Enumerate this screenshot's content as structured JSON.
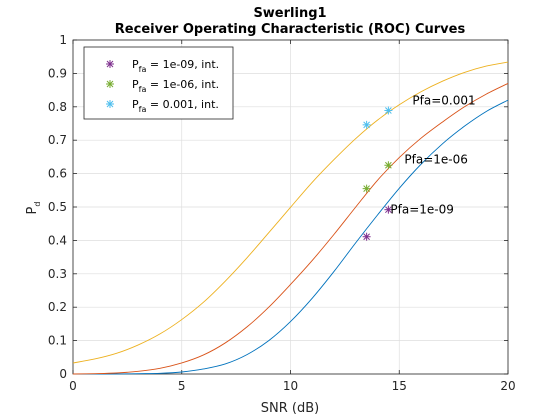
{
  "chart_data": {
    "type": "line",
    "title_line1": "Swerling1",
    "title_line2": "Receiver Operating Characteristic (ROC) Curves",
    "xlabel": "SNR (dB)",
    "ylabel_main": "P",
    "ylabel_sub": "d",
    "xlim": [
      0,
      20
    ],
    "ylim": [
      0,
      1
    ],
    "xticks": [
      "0",
      "5",
      "10",
      "15",
      "20"
    ],
    "yticks": [
      "0",
      "0.1",
      "0.2",
      "0.3",
      "0.4",
      "0.5",
      "0.6",
      "0.7",
      "0.8",
      "0.9",
      "1"
    ],
    "grid": true,
    "legend_position": "top-left",
    "series": [
      {
        "name_main": "P",
        "name_sub": "fa",
        "name_rest": " = 1e-09, int.",
        "label": "Pfa=1e-09",
        "color": "#0072BD",
        "marker_color": "#7E2F8E",
        "x": [
          0,
          1,
          2,
          3,
          4,
          5,
          6,
          7,
          8,
          9,
          10,
          11,
          12,
          13,
          14,
          15,
          16,
          17,
          18,
          19,
          20
        ],
        "y": [
          0.0,
          0.0,
          0.0,
          0.001,
          0.002,
          0.006,
          0.015,
          0.03,
          0.058,
          0.1,
          0.157,
          0.227,
          0.307,
          0.393,
          0.476,
          0.556,
          0.628,
          0.69,
          0.742,
          0.786,
          0.82
        ],
        "markers": [
          {
            "x": 13.5,
            "y": 0.411
          },
          {
            "x": 14.5,
            "y": 0.492
          }
        ]
      },
      {
        "name_main": "P",
        "name_sub": "fa",
        "name_rest": " = 1e-06, int.",
        "label": "Pfa=1e-06",
        "color": "#D95319",
        "marker_color": "#77AC30",
        "x": [
          0,
          1,
          2,
          3,
          4,
          5,
          6,
          7,
          8,
          9,
          10,
          11,
          12,
          13,
          14,
          15,
          16,
          17,
          18,
          19,
          20
        ],
        "y": [
          0.0,
          0.001,
          0.003,
          0.008,
          0.017,
          0.033,
          0.057,
          0.093,
          0.141,
          0.2,
          0.268,
          0.34,
          0.418,
          0.5,
          0.58,
          0.648,
          0.706,
          0.755,
          0.8,
          0.838,
          0.87
        ],
        "markers": [
          {
            "x": 13.5,
            "y": 0.555
          },
          {
            "x": 14.5,
            "y": 0.625
          }
        ]
      },
      {
        "name_main": "P",
        "name_sub": "fa",
        "name_rest": " = 0.001, int.",
        "label": "Pfa=0.001",
        "color": "#EDB120",
        "marker_color": "#4DBEEE",
        "x": [
          0,
          1,
          2,
          3,
          4,
          5,
          6,
          7,
          8,
          9,
          10,
          11,
          12,
          13,
          14,
          15,
          16,
          17,
          18,
          19,
          20
        ],
        "y": [
          0.033,
          0.045,
          0.062,
          0.087,
          0.12,
          0.163,
          0.215,
          0.278,
          0.348,
          0.423,
          0.499,
          0.574,
          0.642,
          0.705,
          0.76,
          0.806,
          0.845,
          0.877,
          0.903,
          0.922,
          0.934
        ],
        "markers": [
          {
            "x": 13.5,
            "y": 0.746
          },
          {
            "x": 14.5,
            "y": 0.789
          }
        ]
      }
    ]
  }
}
